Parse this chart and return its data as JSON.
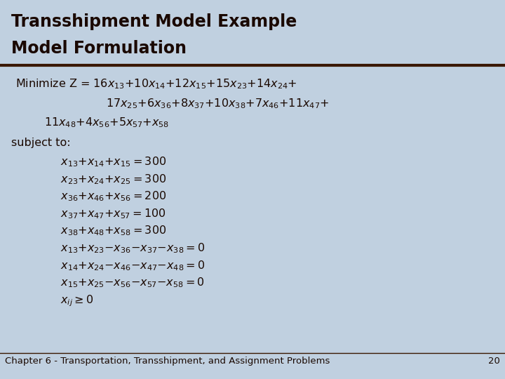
{
  "title_line1": "Transshipment Model Example",
  "title_line2": "Model Formulation",
  "background_color": "#c0d0e0",
  "title_color": "#1a0800",
  "text_color": "#1a0800",
  "footer_text": "Chapter 6 - Transportation, Transshipment, and Assignment Problems",
  "footer_page": "20",
  "title_fontsize": 17,
  "body_fontsize": 11.5,
  "footer_fontsize": 9.5,
  "rule_color": "#3a1800"
}
